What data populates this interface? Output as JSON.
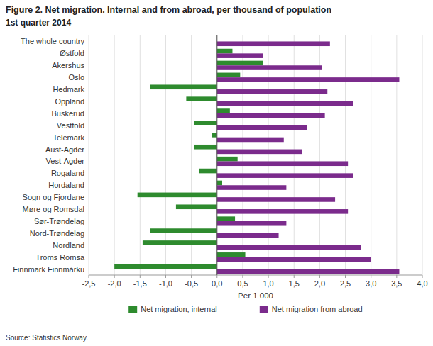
{
  "chart_data": {
    "type": "bar",
    "orientation": "horizontal",
    "title": "Figure 2. Net migration. Internal and from abroad, per thousand of population",
    "subtitle": "1st quarter 2014",
    "source": "Source: Statistics Norway.",
    "xlabel": "Per 1 000",
    "categories": [
      "The whole country",
      "Østfold",
      "Akershus",
      "Oslo",
      "Hedmark",
      "Oppland",
      "Buskerud",
      "Vestfold",
      "Telemark",
      "Aust-Agder",
      "Vest-Agder",
      "Rogaland",
      "Hordaland",
      "Sogn og Fjordane",
      "Møre og Romsdal",
      "Sør-Trøndelag",
      "Nord-Trøndelag",
      "Nordland",
      "Troms Romsa",
      "Finnmark Finnmárku"
    ],
    "series": [
      {
        "name": "Net migration, internal",
        "color": "#2e8b2e",
        "values": [
          0.0,
          0.3,
          0.9,
          0.45,
          -1.3,
          -0.6,
          0.25,
          -0.45,
          -0.1,
          -0.45,
          0.4,
          -0.35,
          0.1,
          -1.55,
          -0.8,
          0.35,
          -1.3,
          -1.45,
          0.55,
          -2.0
        ]
      },
      {
        "name": "Net migration from abroad",
        "color": "#7b2b8c",
        "values": [
          2.2,
          0.9,
          2.05,
          3.55,
          2.15,
          2.65,
          2.1,
          1.75,
          1.3,
          1.65,
          2.55,
          2.65,
          1.35,
          2.3,
          2.55,
          1.35,
          1.2,
          2.8,
          3.0,
          3.55
        ]
      }
    ],
    "xlim": [
      -2.5,
      4.0
    ],
    "xticks": [
      {
        "value": -2.5,
        "label": "-2,5"
      },
      {
        "value": -2.0,
        "label": "-2,0"
      },
      {
        "value": -1.5,
        "label": "-1,5"
      },
      {
        "value": -1.0,
        "label": "-1,0"
      },
      {
        "value": -0.5,
        "label": "-0,5"
      },
      {
        "value": 0.0,
        "label": "0,0"
      },
      {
        "value": 0.5,
        "label": "0,5"
      },
      {
        "value": 1.0,
        "label": "1,0"
      },
      {
        "value": 1.5,
        "label": "1,5"
      },
      {
        "value": 2.0,
        "label": "2,0"
      },
      {
        "value": 2.5,
        "label": "2,5"
      },
      {
        "value": 3.0,
        "label": "3,0"
      },
      {
        "value": 3.5,
        "label": "3,5"
      },
      {
        "value": 4.0,
        "label": "4,0"
      }
    ],
    "grid": true,
    "legend": "bottom"
  }
}
